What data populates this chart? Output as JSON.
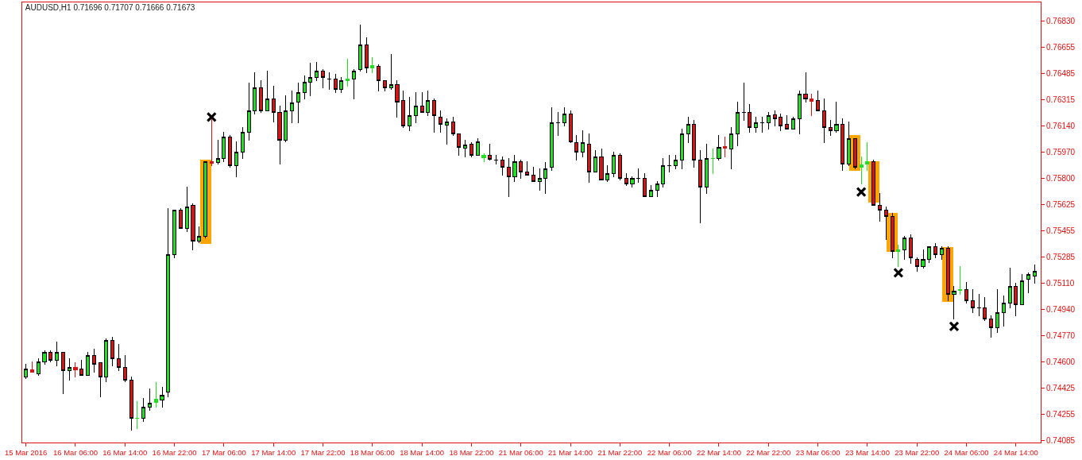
{
  "chart_data": {
    "type": "candlestick",
    "title": "AUDUSD,H1 0.71696 0.71707 0.71666 0.71673",
    "categories": [
      "15 Mar 2016",
      null,
      null,
      null,
      null,
      null,
      null,
      null,
      "16 Mar 06:00",
      null,
      null,
      null,
      null,
      null,
      null,
      null,
      "16 Mar 14:00",
      null,
      null,
      null,
      null,
      null,
      null,
      null,
      "16 Mar 22:00",
      null,
      null,
      null,
      null,
      null,
      null,
      null,
      "17 Mar 06:00",
      null,
      null,
      null,
      null,
      null,
      null,
      null,
      "17 Mar 14:00",
      null,
      null,
      null,
      null,
      null,
      null,
      null,
      "17 Mar 22:00",
      null,
      null,
      null,
      null,
      null,
      null,
      null,
      "18 Mar 06:00",
      null,
      null,
      null,
      null,
      null,
      null,
      null,
      "18 Mar 14:00",
      null,
      null,
      null,
      null,
      null,
      null,
      null,
      "18 Mar 22:00",
      null,
      null,
      null,
      null,
      null,
      null,
      null,
      "21 Mar 06:00",
      null,
      null,
      null,
      null,
      null,
      null,
      null,
      "21 Mar 14:00",
      null,
      null,
      null,
      null,
      null,
      null,
      null,
      "21 Mar 22:00",
      null,
      null,
      null,
      null,
      null,
      null,
      null,
      "22 Mar 06:00",
      null,
      null,
      null,
      null,
      null,
      null,
      null,
      "22 Mar 14:00",
      null,
      null,
      null,
      null,
      null,
      null,
      null,
      "22 Mar 22:00",
      null,
      null,
      null,
      null,
      null,
      null,
      null,
      "23 Mar 06:00",
      null,
      null,
      null,
      null,
      null,
      null,
      null,
      "23 Mar 14:00",
      null,
      null,
      null,
      null,
      null,
      null,
      null,
      "23 Mar 22:00",
      null,
      null,
      null,
      null,
      null,
      null,
      null,
      "24 Mar 06:00",
      null,
      null,
      null,
      null,
      null,
      null,
      null,
      "24 Mar 14:00",
      null,
      null,
      null
    ],
    "ohlc": [
      [
        0.745,
        0.7458,
        0.7449,
        0.7455
      ],
      [
        0.74547,
        0.746,
        0.7453,
        0.74532
      ],
      [
        0.7452,
        0.7462,
        0.7451,
        0.746
      ],
      [
        0.746,
        0.7467,
        0.7458,
        0.7466
      ],
      [
        0.7466,
        0.7467,
        0.746,
        0.7461
      ],
      [
        0.7461,
        0.7473,
        0.7457,
        0.7466
      ],
      [
        0.7466,
        0.7466,
        0.7439,
        0.7454
      ],
      [
        0.74542,
        0.7462,
        0.7448,
        0.74563
      ],
      [
        0.74563,
        0.7459,
        0.745,
        0.74547
      ],
      [
        0.7455,
        0.7461,
        0.7451,
        0.7451
      ],
      [
        0.7451,
        0.7466,
        0.7451,
        0.7464
      ],
      [
        0.7464,
        0.7468,
        0.7453,
        0.7458
      ],
      [
        0.7459,
        0.7459,
        0.7437,
        0.745
      ],
      [
        0.745,
        0.7475,
        0.7447,
        0.7474
      ],
      [
        0.7474,
        0.7476,
        0.7457,
        0.7462
      ],
      [
        0.7462,
        0.7471,
        0.7454,
        0.7456
      ],
      [
        0.7456,
        0.7464,
        0.7447,
        0.7448
      ],
      [
        0.7448,
        0.745,
        0.7415,
        0.7423
      ],
      [
        0.7423,
        0.7434,
        0.7416,
        0.7423
      ],
      [
        0.7423,
        0.7436,
        0.7421,
        0.743
      ],
      [
        0.74301,
        0.7442,
        0.7428,
        0.74329
      ],
      [
        0.74334,
        0.7446,
        0.743,
        0.74352
      ],
      [
        0.7435,
        0.7443,
        0.743,
        0.7438
      ],
      [
        0.744,
        0.756,
        0.7437,
        0.753
      ],
      [
        0.753,
        0.7559,
        0.7528,
        0.7559
      ],
      [
        0.7559,
        0.756,
        0.7547,
        0.7547
      ],
      [
        0.7547,
        0.7574,
        0.7545,
        0.7561
      ],
      [
        0.7562,
        0.7563,
        0.7533,
        0.7539
      ],
      [
        0.7539,
        0.7548,
        0.7538,
        0.7542
      ],
      [
        0.7542,
        0.7591,
        0.7541,
        0.7591
      ],
      [
        0.75907,
        0.7619,
        0.7588,
        0.75896
      ],
      [
        0.759,
        0.7605,
        0.7589,
        0.7593
      ],
      [
        0.7593,
        0.761,
        0.7591,
        0.7607
      ],
      [
        0.7607,
        0.7608,
        0.7587,
        0.7588
      ],
      [
        0.7588,
        0.7604,
        0.7581,
        0.7597
      ],
      [
        0.7597,
        0.7613,
        0.7593,
        0.761
      ],
      [
        0.761,
        0.7642,
        0.7605,
        0.7624
      ],
      [
        0.7624,
        0.7649,
        0.7622,
        0.7639
      ],
      [
        0.7639,
        0.7644,
        0.7623,
        0.7624
      ],
      [
        0.7624,
        0.765,
        0.7624,
        0.7632
      ],
      [
        0.7632,
        0.764,
        0.7617,
        0.7623
      ],
      [
        0.7623,
        0.7627,
        0.7589,
        0.7605
      ],
      [
        0.7605,
        0.7634,
        0.7604,
        0.7624
      ],
      [
        0.7624,
        0.7637,
        0.7616,
        0.7629
      ],
      [
        0.763,
        0.7642,
        0.7616,
        0.7636
      ],
      [
        0.7636,
        0.7647,
        0.7632,
        0.7643
      ],
      [
        0.7643,
        0.7655,
        0.7634,
        0.7646
      ],
      [
        0.7646,
        0.7656,
        0.7644,
        0.765
      ],
      [
        0.765,
        0.7651,
        0.7639,
        0.7646
      ],
      [
        0.7645,
        0.7649,
        0.7638,
        0.7645
      ],
      [
        0.7645,
        0.7648,
        0.7636,
        0.7638
      ],
      [
        0.7638,
        0.7646,
        0.7636,
        0.7644
      ],
      [
        0.76436,
        0.7658,
        0.764,
        0.76446
      ],
      [
        0.7645,
        0.7651,
        0.7632,
        0.765
      ],
      [
        0.7651,
        0.768,
        0.765,
        0.7667
      ],
      [
        0.7667,
        0.7672,
        0.7649,
        0.7652
      ],
      [
        0.76519,
        0.7659,
        0.7649,
        0.76535
      ],
      [
        0.7653,
        0.7654,
        0.7637,
        0.7644
      ],
      [
        0.7644,
        0.7644,
        0.7637,
        0.7639
      ],
      [
        0.7639,
        0.7661,
        0.7638,
        0.7641
      ],
      [
        0.7641,
        0.7644,
        0.762,
        0.763
      ],
      [
        0.7631,
        0.7637,
        0.7613,
        0.7614
      ],
      [
        0.7614,
        0.7633,
        0.7611,
        0.7621
      ],
      [
        0.7621,
        0.7636,
        0.7616,
        0.7627
      ],
      [
        0.7627,
        0.7636,
        0.7623,
        0.7623
      ],
      [
        0.7623,
        0.7637,
        0.7621,
        0.7631
      ],
      [
        0.7631,
        0.7632,
        0.761,
        0.7621
      ],
      [
        0.762,
        0.7624,
        0.761,
        0.7615
      ],
      [
        0.76145,
        0.7619,
        0.7602,
        0.76166
      ],
      [
        0.7617,
        0.762,
        0.7608,
        0.7609
      ],
      [
        0.7609,
        0.7609,
        0.7595,
        0.76
      ],
      [
        0.75995,
        0.7605,
        0.7594,
        0.76016
      ],
      [
        0.7602,
        0.7603,
        0.7594,
        0.7595
      ],
      [
        0.7595,
        0.7606,
        0.7595,
        0.7604
      ],
      [
        0.75933,
        0.7596,
        0.7591,
        0.75948
      ],
      [
        0.75948,
        0.7602,
        0.7592,
        0.75922
      ],
      [
        0.7592,
        0.7595,
        0.7589,
        0.7592
      ],
      [
        0.7592,
        0.7594,
        0.7582,
        0.7587
      ],
      [
        0.7587,
        0.7593,
        0.7568,
        0.7581
      ],
      [
        0.7581,
        0.7595,
        0.7578,
        0.7591
      ],
      [
        0.7591,
        0.7592,
        0.758,
        0.7584
      ],
      [
        0.7584,
        0.7591,
        0.7582,
        0.7582
      ],
      [
        0.7582,
        0.7587,
        0.7578,
        0.7578
      ],
      [
        0.7578,
        0.7586,
        0.7572,
        0.758
      ],
      [
        0.758,
        0.759,
        0.757,
        0.7586
      ],
      [
        0.7587,
        0.7626,
        0.7585,
        0.7616
      ],
      [
        0.7616,
        0.7623,
        0.7608,
        0.7616
      ],
      [
        0.7616,
        0.7626,
        0.7614,
        0.7622
      ],
      [
        0.7622,
        0.7624,
        0.7603,
        0.7604
      ],
      [
        0.7603,
        0.7608,
        0.7592,
        0.7597
      ],
      [
        0.7597,
        0.7611,
        0.7594,
        0.7603
      ],
      [
        0.7602,
        0.7609,
        0.7577,
        0.7584
      ],
      [
        0.7584,
        0.7598,
        0.7584,
        0.7594
      ],
      [
        0.7594,
        0.7599,
        0.7579,
        0.7579
      ],
      [
        0.7579,
        0.7588,
        0.7578,
        0.7583
      ],
      [
        0.7583,
        0.7597,
        0.7581,
        0.7595
      ],
      [
        0.7595,
        0.7596,
        0.7579,
        0.758
      ],
      [
        0.758,
        0.7583,
        0.7575,
        0.7576
      ],
      [
        0.7576,
        0.7581,
        0.7574,
        0.758
      ],
      [
        0.758,
        0.7586,
        0.7577,
        0.758
      ],
      [
        0.758,
        0.7583,
        0.7568,
        0.7568
      ],
      [
        0.7568,
        0.7575,
        0.7568,
        0.7572
      ],
      [
        0.7572,
        0.7578,
        0.7568,
        0.7576
      ],
      [
        0.7576,
        0.7593,
        0.7574,
        0.7588
      ],
      [
        0.7588,
        0.7595,
        0.7584,
        0.7588
      ],
      [
        0.7588,
        0.7595,
        0.7586,
        0.7592
      ],
      [
        0.7592,
        0.7612,
        0.7586,
        0.7609
      ],
      [
        0.7609,
        0.762,
        0.7603,
        0.7615
      ],
      [
        0.7615,
        0.7618,
        0.7587,
        0.7592
      ],
      [
        0.7592,
        0.7598,
        0.7551,
        0.7574
      ],
      [
        0.7574,
        0.7602,
        0.757,
        0.7593
      ],
      [
        0.7593,
        0.7599,
        0.7583,
        0.7593
      ],
      [
        0.7593,
        0.7608,
        0.7592,
        0.76
      ],
      [
        0.76009,
        0.7607,
        0.7594,
        0.75994
      ],
      [
        0.7599,
        0.7613,
        0.7586,
        0.7609
      ],
      [
        0.7609,
        0.763,
        0.7601,
        0.7623
      ],
      [
        0.7623,
        0.7642,
        0.7618,
        0.7623
      ],
      [
        0.7623,
        0.7628,
        0.761,
        0.7613
      ],
      [
        0.7613,
        0.762,
        0.761,
        0.7616
      ],
      [
        0.7616,
        0.762,
        0.761,
        0.7616
      ],
      [
        0.7616,
        0.7623,
        0.7612,
        0.7621
      ],
      [
        0.76213,
        0.7624,
        0.7614,
        0.76191
      ],
      [
        0.762,
        0.7622,
        0.7611,
        0.7614
      ],
      [
        0.7615,
        0.7621,
        0.7612,
        0.7612
      ],
      [
        0.7612,
        0.762,
        0.7612,
        0.7619
      ],
      [
        0.7619,
        0.7637,
        0.7609,
        0.7635
      ],
      [
        0.7635,
        0.7649,
        0.763,
        0.7632
      ],
      [
        0.76317,
        0.7635,
        0.7621,
        0.76305
      ],
      [
        0.7631,
        0.7637,
        0.7624,
        0.7624
      ],
      [
        0.7624,
        0.7632,
        0.7603,
        0.7613
      ],
      [
        0.7613,
        0.7618,
        0.7608,
        0.7611
      ],
      [
        0.7611,
        0.763,
        0.761,
        0.7615
      ],
      [
        0.7615,
        0.7619,
        0.7585,
        0.7589
      ],
      [
        0.7589,
        0.7617,
        0.7588,
        0.7606
      ],
      [
        0.7606,
        0.7606,
        0.7586,
        0.7587
      ],
      [
        0.75871,
        0.7594,
        0.7576,
        0.75888
      ],
      [
        0.7589,
        0.7603,
        0.7585,
        0.75907
      ],
      [
        0.7591,
        0.7592,
        0.7562,
        0.7562
      ],
      [
        0.7562,
        0.757,
        0.7552,
        0.7559
      ],
      [
        0.7559,
        0.7561,
        0.754,
        0.7555
      ],
      [
        0.7555,
        0.7557,
        0.7528,
        0.7532
      ],
      [
        0.7532,
        0.7536,
        0.7522,
        0.75331
      ],
      [
        0.7533,
        0.7542,
        0.7527,
        0.7541
      ],
      [
        0.7541,
        0.7543,
        0.7524,
        0.7528
      ],
      [
        0.7527,
        0.7528,
        0.7519,
        0.7522
      ],
      [
        0.7522,
        0.7533,
        0.7521,
        0.7527
      ],
      [
        0.7527,
        0.7535,
        0.7525,
        0.7535
      ],
      [
        0.7535,
        0.7537,
        0.7528,
        0.753
      ],
      [
        0.753,
        0.7535,
        0.7527,
        0.7534
      ],
      [
        0.7534,
        0.7535,
        0.75,
        0.7504
      ],
      [
        0.7504,
        0.7509,
        0.7488,
        0.75059
      ],
      [
        0.75063,
        0.7522,
        0.7504,
        0.75073
      ],
      [
        0.7507,
        0.7512,
        0.7498,
        0.75
      ],
      [
        0.75,
        0.7507,
        0.7492,
        0.7495
      ],
      [
        0.7495,
        0.7504,
        0.749,
        0.7495
      ],
      [
        0.7495,
        0.7502,
        0.7487,
        0.7488
      ],
      [
        0.7488,
        0.749,
        0.7476,
        0.7482
      ],
      [
        0.7482,
        0.7507,
        0.7479,
        0.7492
      ],
      [
        0.7492,
        0.7503,
        0.7483,
        0.7498
      ],
      [
        0.7498,
        0.7521,
        0.7495,
        0.7509
      ],
      [
        0.7509,
        0.7511,
        0.749,
        0.7497
      ],
      [
        0.7497,
        0.7517,
        0.7497,
        0.7513
      ],
      [
        0.7514,
        0.7518,
        0.7505,
        0.7517
      ],
      [
        0.7516,
        0.7523,
        0.7511,
        0.7519
      ]
    ],
    "colors": [
      "#22dd22",
      "#d41515",
      "#22dd22",
      "#22dd22",
      "#d41515",
      "#22dd22",
      "#d41515",
      "#22dd22",
      "#d41515",
      "#d41515",
      "#22dd22",
      "#d41515",
      "#d41515",
      "#22dd22",
      "#d41515",
      "#d41515",
      "#d41515",
      "#d41515",
      "#22dd22",
      "#22dd22",
      "#22dd22",
      "#22dd22",
      "#22dd22",
      "#22dd22",
      "#22dd22",
      "#d41515",
      "#22dd22",
      "#d41515",
      "#22dd22",
      "#22dd22",
      "#d41515",
      "#22dd22",
      "#22dd22",
      "#d41515",
      "#22dd22",
      "#22dd22",
      "#22dd22",
      "#22dd22",
      "#d41515",
      "#22dd22",
      "#d41515",
      "#d41515",
      "#22dd22",
      "#22dd22",
      "#22dd22",
      "#22dd22",
      "#22dd22",
      "#22dd22",
      "#d41515",
      "#000000",
      "#d41515",
      "#22dd22",
      "#22dd22",
      "#22dd22",
      "#22dd22",
      "#d41515",
      "#22dd22",
      "#d41515",
      "#d41515",
      "#22dd22",
      "#d41515",
      "#d41515",
      "#22dd22",
      "#22dd22",
      "#d41515",
      "#22dd22",
      "#d41515",
      "#d41515",
      "#22dd22",
      "#d41515",
      "#d41515",
      "#22dd22",
      "#d41515",
      "#22dd22",
      "#22dd22",
      "#d41515",
      "#000000",
      "#d41515",
      "#d41515",
      "#22dd22",
      "#d41515",
      "#d41515",
      "#d41515",
      "#22dd22",
      "#22dd22",
      "#22dd22",
      "#000000",
      "#22dd22",
      "#d41515",
      "#d41515",
      "#22dd22",
      "#d41515",
      "#22dd22",
      "#d41515",
      "#22dd22",
      "#22dd22",
      "#d41515",
      "#d41515",
      "#22dd22",
      "#000000",
      "#d41515",
      "#22dd22",
      "#22dd22",
      "#22dd22",
      "#000000",
      "#22dd22",
      "#22dd22",
      "#22dd22",
      "#d41515",
      "#d41515",
      "#22dd22",
      "#22dd22",
      "#22dd22",
      "#d41515",
      "#22dd22",
      "#22dd22",
      "#000000",
      "#d41515",
      "#22dd22",
      "#000000",
      "#22dd22",
      "#d41515",
      "#d41515",
      "#d41515",
      "#22dd22",
      "#22dd22",
      "#d41515",
      "#d41515",
      "#d41515",
      "#d41515",
      "#d41515",
      "#22dd22",
      "#d41515",
      "#22dd22",
      "#d41515",
      "#22dd22",
      "#22dd22",
      "#d41515",
      "#d41515",
      "#d41515",
      "#d41515",
      "#22dd22",
      "#22dd22",
      "#d41515",
      "#d41515",
      "#22dd22",
      "#22dd22",
      "#d41515",
      "#22dd22",
      "#d41515",
      "#22dd22",
      "#22dd22",
      "#d41515",
      "#d41515",
      "#000000",
      "#d41515",
      "#d41515",
      "#22dd22",
      "#22dd22",
      "#22dd22",
      "#d41515",
      "#22dd22",
      "#22dd22",
      "#22dd22"
    ],
    "series": [
      {
        "type": "bar",
        "color": "#ffa500",
        "values": [
          null,
          null,
          null,
          null,
          null,
          null,
          null,
          null,
          null,
          null,
          null,
          null,
          null,
          null,
          null,
          null,
          null,
          null,
          null,
          null,
          null,
          null,
          null,
          null,
          null,
          null,
          null,
          null,
          null,
          0.0055,
          null,
          null,
          null,
          null,
          null,
          null,
          null,
          null,
          null,
          null,
          null,
          null,
          null,
          null,
          null,
          null,
          null,
          null,
          null,
          null,
          null,
          null,
          null,
          null,
          null,
          null,
          null,
          null,
          null,
          null,
          null,
          null,
          null,
          null,
          null,
          null,
          null,
          null,
          null,
          null,
          null,
          null,
          null,
          null,
          null,
          null,
          null,
          null,
          null,
          null,
          null,
          null,
          null,
          null,
          null,
          null,
          null,
          null,
          null,
          null,
          null,
          null,
          null,
          null,
          null,
          null,
          null,
          null,
          null,
          null,
          null,
          null,
          null,
          null,
          null,
          null,
          null,
          null,
          null,
          null,
          null,
          null,
          null,
          null,
          null,
          null,
          null,
          null,
          null,
          null,
          null,
          null,
          null,
          null,
          null,
          null,
          null,
          null,
          null,
          null,
          null,
          null,
          null,
          null,
          0.0023,
          null,
          null,
          0.0027,
          null,
          null,
          0.0025,
          null,
          null,
          null,
          null,
          null,
          null,
          null,
          null,
          0.0036,
          null,
          null,
          null,
          null,
          null,
          null,
          null,
          null,
          null,
          null,
          null,
          null,
          null,
          null
        ],
        "base": [
          null,
          null,
          null,
          null,
          null,
          null,
          null,
          null,
          null,
          null,
          null,
          null,
          null,
          null,
          null,
          null,
          null,
          null,
          null,
          null,
          null,
          null,
          null,
          null,
          null,
          null,
          null,
          null,
          null,
          0.7537,
          null,
          null,
          null,
          null,
          null,
          null,
          null,
          null,
          null,
          null,
          null,
          null,
          null,
          null,
          null,
          null,
          null,
          null,
          null,
          null,
          null,
          null,
          null,
          null,
          null,
          null,
          null,
          null,
          null,
          null,
          null,
          null,
          null,
          null,
          null,
          null,
          null,
          null,
          null,
          null,
          null,
          null,
          null,
          null,
          null,
          null,
          null,
          null,
          null,
          null,
          null,
          null,
          null,
          null,
          null,
          null,
          null,
          null,
          null,
          null,
          null,
          null,
          null,
          null,
          null,
          null,
          null,
          null,
          null,
          null,
          null,
          null,
          null,
          null,
          null,
          null,
          null,
          null,
          null,
          null,
          null,
          null,
          null,
          null,
          null,
          null,
          null,
          null,
          null,
          null,
          null,
          null,
          null,
          null,
          null,
          null,
          null,
          null,
          null,
          null,
          null,
          null,
          null,
          null,
          0.7585,
          null,
          null,
          0.7564,
          null,
          null,
          0.7532,
          null,
          null,
          null,
          null,
          null,
          null,
          null,
          null,
          0.7499,
          null,
          null,
          null,
          null,
          null,
          null,
          null,
          null,
          null,
          null,
          null,
          null,
          null,
          null
        ]
      },
      {
        "type": "scatter",
        "color": "#000000",
        "marker": "cross",
        "values": [
          null,
          null,
          null,
          null,
          null,
          null,
          null,
          null,
          null,
          null,
          null,
          null,
          null,
          null,
          null,
          null,
          null,
          null,
          null,
          null,
          null,
          null,
          null,
          null,
          null,
          null,
          null,
          null,
          null,
          null,
          0.762,
          null,
          null,
          null,
          null,
          null,
          null,
          null,
          null,
          null,
          null,
          null,
          null,
          null,
          null,
          null,
          null,
          null,
          null,
          null,
          null,
          null,
          null,
          null,
          null,
          null,
          null,
          null,
          null,
          null,
          null,
          null,
          null,
          null,
          null,
          null,
          null,
          null,
          null,
          null,
          null,
          null,
          null,
          null,
          null,
          null,
          null,
          null,
          null,
          null,
          null,
          null,
          null,
          null,
          null,
          null,
          null,
          null,
          null,
          null,
          null,
          null,
          null,
          null,
          null,
          null,
          null,
          null,
          null,
          null,
          null,
          null,
          null,
          null,
          null,
          null,
          null,
          null,
          null,
          null,
          null,
          null,
          null,
          null,
          null,
          null,
          null,
          null,
          null,
          null,
          null,
          null,
          null,
          null,
          null,
          null,
          null,
          null,
          null,
          null,
          null,
          null,
          null,
          null,
          null,
          0.7571,
          null,
          null,
          null,
          null,
          null,
          0.7518,
          null,
          null,
          null,
          null,
          null,
          null,
          null,
          null,
          0.7483,
          null,
          null,
          null,
          null,
          null,
          null,
          null,
          null,
          null,
          null,
          null,
          null,
          null
        ]
      }
    ],
    "ylim": [
      0.7407,
      0.7695
    ],
    "yticks": [
      {
        "value": 0.7683,
        "label": "0.76830"
      },
      {
        "value": 0.76655,
        "label": "0.76655"
      },
      {
        "value": 0.76485,
        "label": "0.76485"
      },
      {
        "value": 0.76315,
        "label": "0.76315"
      },
      {
        "value": 0.7614,
        "label": "0.76140"
      },
      {
        "value": 0.7597,
        "label": "0.75970"
      },
      {
        "value": 0.758,
        "label": "0.75800"
      },
      {
        "value": 0.75625,
        "label": "0.75625"
      },
      {
        "value": 0.75455,
        "label": "0.75455"
      },
      {
        "value": 0.75285,
        "label": "0.75285"
      },
      {
        "value": 0.7511,
        "label": "0.75110"
      },
      {
        "value": 0.7494,
        "label": "0.74940"
      },
      {
        "value": 0.7477,
        "label": "0.74770"
      },
      {
        "value": 0.746,
        "label": "0.74600"
      },
      {
        "value": 0.74425,
        "label": "0.74425"
      },
      {
        "value": 0.74255,
        "label": "0.74255"
      },
      {
        "value": 0.74085,
        "label": "0.74085"
      }
    ]
  }
}
